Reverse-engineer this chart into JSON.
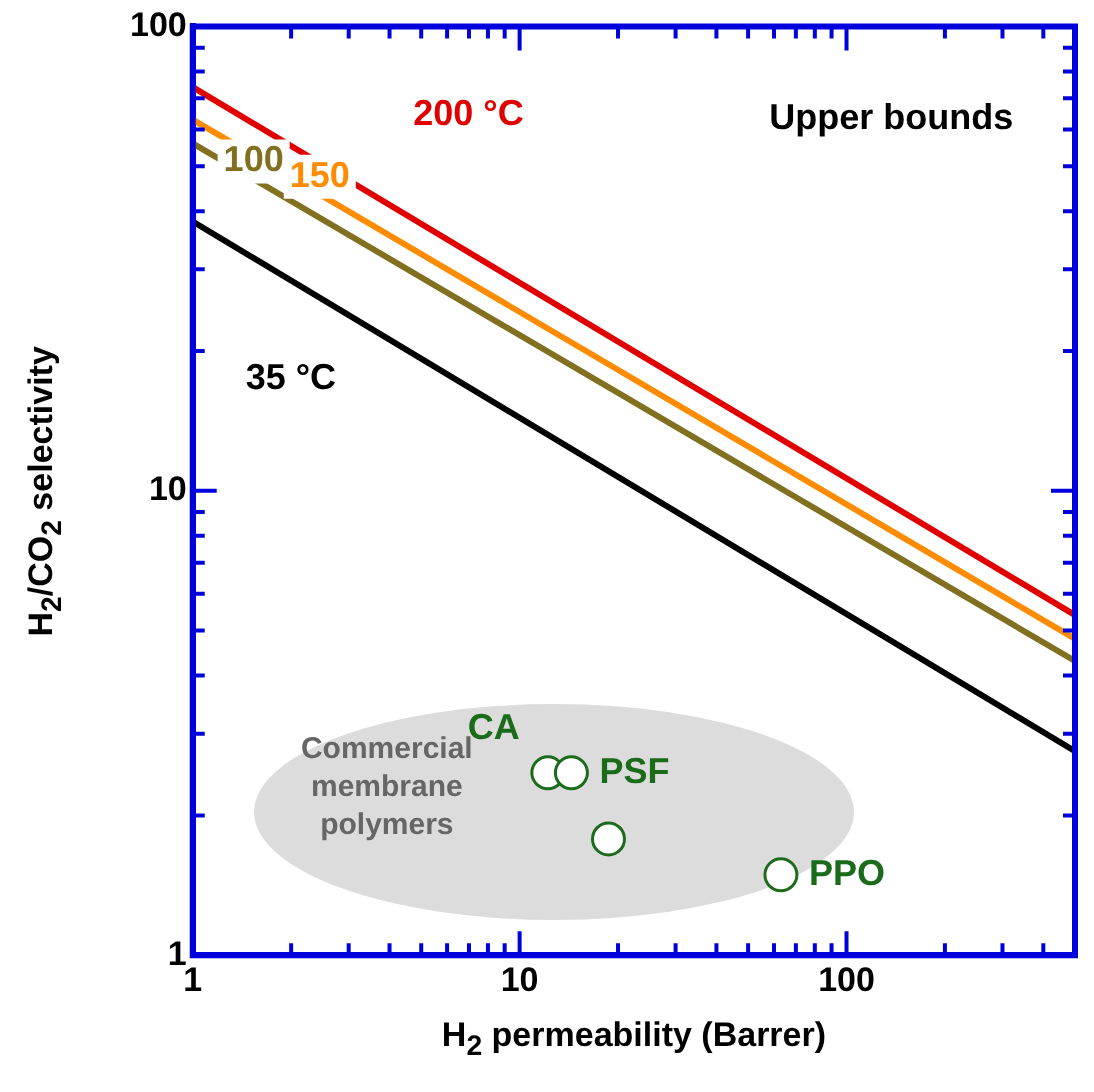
{
  "chart_data": {
    "type": "line",
    "xlabel": "H$_{2}$ permeability (Barrer)",
    "ylabel": "H$_{2}$/CO$_{2}$ selectivity",
    "log": "xy",
    "xlim": [
      1,
      500
    ],
    "ylim": [
      1,
      100
    ],
    "xticks": [
      1,
      10,
      100
    ],
    "yticks": [
      1,
      10,
      100
    ],
    "grid": false,
    "legend": false,
    "marker": "none",
    "line_style": "solid",
    "series": [
      {
        "name": "200 °C",
        "color": "#e00000",
        "x": [
          1,
          500
        ],
        "values": [
          74,
          5.4
        ]
      },
      {
        "name": "150",
        "color": "#ff8c00",
        "x": [
          1,
          500
        ],
        "values": [
          63,
          4.8
        ]
      },
      {
        "name": "100",
        "color": "#807020",
        "x": [
          1,
          500
        ],
        "values": [
          56,
          4.3
        ]
      },
      {
        "name": "35 °C",
        "color": "#000000",
        "x": [
          1,
          500
        ],
        "values": [
          38,
          2.75
        ]
      },
      {
        "type": "scatter",
        "marker": "circle",
        "color": "#1a6b1a",
        "x": [
          12.2,
          14.4,
          18.7,
          63
        ],
        "values": [
          2.47,
          2.47,
          1.78,
          1.49
        ],
        "value_labels": [
          "CA",
          "PSF",
          null,
          "PPO"
        ]
      }
    ],
    "annotations": [
      "Upper bounds",
      "Commercial\nmembrane\npolymers"
    ]
  }
}
